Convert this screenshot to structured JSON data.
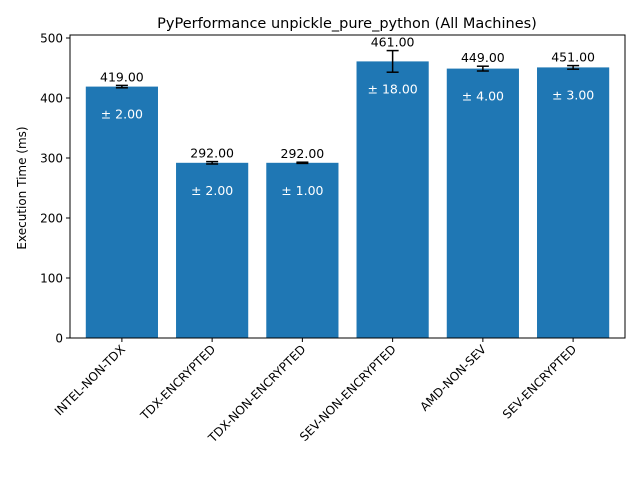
{
  "chart_data": {
    "type": "bar",
    "title": "PyPerformance unpickle_pure_python (All Machines)",
    "xlabel": "",
    "ylabel": "Execution Time (ms)",
    "categories": [
      "INTEL-NON-TDX",
      "TDX-ENCRYPTED",
      "TDX-NON-ENCRYPTED",
      "SEV-NON-ENCRYPTED",
      "AMD-NON-SEV",
      "SEV-ENCRYPTED"
    ],
    "values": [
      419,
      292,
      292,
      461,
      449,
      451
    ],
    "errors": [
      2,
      2,
      1,
      18,
      4,
      3
    ],
    "value_labels": [
      "419.00",
      "292.00",
      "292.00",
      "461.00",
      "449.00",
      "451.00"
    ],
    "error_labels": [
      "± 2.00",
      "± 2.00",
      "± 1.00",
      "± 18.00",
      "± 4.00",
      "± 3.00"
    ],
    "yticks": [
      0,
      100,
      200,
      300,
      400,
      500
    ],
    "ylim": [
      0,
      505
    ],
    "grid": false,
    "bar_color": "#1f77b4"
  }
}
